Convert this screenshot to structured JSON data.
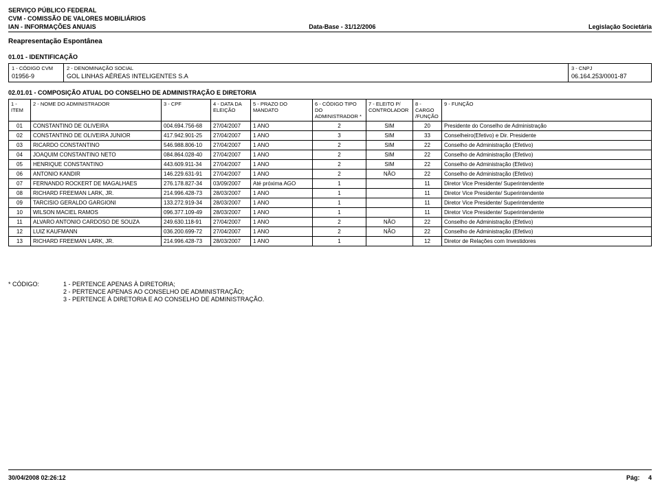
{
  "header": {
    "line1": "SERVIÇO PÚBLICO FEDERAL",
    "line2": "CVM - COMISSÃO DE VALORES MOBILIÁRIOS",
    "left3": "IAN - INFORMAÇÕES ANUAIS",
    "center3": "Data-Base - 31/12/2006",
    "right3": "Legislação Societária",
    "reap": "Reapresentação Espontânea"
  },
  "section1": {
    "title": "01.01 - IDENTIFICAÇÃO",
    "codigo_lbl": "1 - CÓDIGO CVM",
    "codigo_val": "01956-9",
    "denom_lbl": "2 - DENOMINAÇÃO SOCIAL",
    "denom_val": "GOL LINHAS AÉREAS INTELIGENTES S.A",
    "cnpj_lbl": "3 - CNPJ",
    "cnpj_val": "06.164.253/0001-87"
  },
  "section2": {
    "title": "02.01.01 - COMPOSIÇÃO ATUAL DO CONSELHO DE ADMINISTRAÇÃO E DIRETORIA",
    "headers": {
      "item": "1 - ITEM",
      "nome": "2 - NOME DO ADMINISTRADOR",
      "cpf": "3 - CPF",
      "data": "4 - DATA DA ELEIÇÃO",
      "prazo": "5 - PRAZO DO MANDATO",
      "tipo": "6 - CÓDIGO TIPO DO ADMINISTRADOR *",
      "eleito": "7 - ELEITO P/ CONTROLADOR",
      "cargo": "8 - CARGO /FUNÇÃO",
      "func": "9 - FUNÇÃO"
    },
    "rows": [
      {
        "item": "01",
        "nome": "CONSTANTINO DE OLIVEIRA",
        "cpf": "004.694.756-68",
        "data": "27/04/2007",
        "prazo": "1 ANO",
        "tipo": "2",
        "eleito": "SIM",
        "cargo": "20",
        "func": "Presidente do Conselho de Administração"
      },
      {
        "item": "02",
        "nome": "CONSTANTINO DE OLIVEIRA JUNIOR",
        "cpf": "417.942.901-25",
        "data": "27/04/2007",
        "prazo": "1 ANO",
        "tipo": "3",
        "eleito": "SIM",
        "cargo": "33",
        "func": "Conselheiro(Efetivo) e Dir. Presidente"
      },
      {
        "item": "03",
        "nome": "RICARDO CONSTANTINO",
        "cpf": "546.988.806-10",
        "data": "27/04/2007",
        "prazo": "1 ANO",
        "tipo": "2",
        "eleito": "SIM",
        "cargo": "22",
        "func": "Conselho de Administração (Efetivo)"
      },
      {
        "item": "04",
        "nome": "JOAQUIM CONSTANTINO NETO",
        "cpf": "084.864.028-40",
        "data": "27/04/2007",
        "prazo": "1 ANO",
        "tipo": "2",
        "eleito": "SIM",
        "cargo": "22",
        "func": "Conselho de Administração (Efetivo)"
      },
      {
        "item": "05",
        "nome": "HENRIQUE CONSTANTINO",
        "cpf": "443.609.911-34",
        "data": "27/04/2007",
        "prazo": "1 ANO",
        "tipo": "2",
        "eleito": "SIM",
        "cargo": "22",
        "func": "Conselho de Administração (Efetivo)"
      },
      {
        "item": "06",
        "nome": "ANTONIO KANDIR",
        "cpf": "146.229.631-91",
        "data": "27/04/2007",
        "prazo": "1 ANO",
        "tipo": "2",
        "eleito": "NÃO",
        "cargo": "22",
        "func": "Conselho de Administração (Efetivo)"
      },
      {
        "item": "07",
        "nome": "FERNANDO ROCKERT DE MAGALHAES",
        "cpf": "276.178.827-34",
        "data": "03/09/2007",
        "prazo": "Até próxima AGO",
        "tipo": "1",
        "eleito": "",
        "cargo": "11",
        "func": "Diretor Vice Presidente/ Superintendente"
      },
      {
        "item": "08",
        "nome": "RICHARD FREEMAN LARK, JR.",
        "cpf": "214.996.428-73",
        "data": "28/03/2007",
        "prazo": "1 ANO",
        "tipo": "1",
        "eleito": "",
        "cargo": "11",
        "func": "Diretor Vice Presidente/ Superintendente"
      },
      {
        "item": "09",
        "nome": "TARCISIO GERALDO GARGIONI",
        "cpf": "133.272.919-34",
        "data": "28/03/2007",
        "prazo": "1 ANO",
        "tipo": "1",
        "eleito": "",
        "cargo": "11",
        "func": "Diretor Vice Presidente/ Superintendente"
      },
      {
        "item": "10",
        "nome": "WILSON MACIEL RAMOS",
        "cpf": "096.377.109-49",
        "data": "28/03/2007",
        "prazo": "1 ANO",
        "tipo": "1",
        "eleito": "",
        "cargo": "11",
        "func": "Diretor Vice Presidente/ Superintendente"
      },
      {
        "item": "11",
        "nome": "ALVARO ANTONIO CARDOSO DE SOUZA",
        "cpf": "249.630.118-91",
        "data": "27/04/2007",
        "prazo": "1 ANO",
        "tipo": "2",
        "eleito": "NÃO",
        "cargo": "22",
        "func": "Conselho de Administração (Efetivo)"
      },
      {
        "item": "12",
        "nome": "LUIZ KAUFMANN",
        "cpf": "036.200.699-72",
        "data": "27/04/2007",
        "prazo": "1 ANO",
        "tipo": "2",
        "eleito": "NÃO",
        "cargo": "22",
        "func": "Conselho de Administração (Efetivo)"
      },
      {
        "item": "13",
        "nome": "RICHARD FREEMAN LARK, JR.",
        "cpf": "214.996.428-73",
        "data": "28/03/2007",
        "prazo": "1 ANO",
        "tipo": "1",
        "eleito": "",
        "cargo": "12",
        "func": "Diretor de Relações com Investidores"
      }
    ]
  },
  "codigo_note": {
    "label": "* CÓDIGO:",
    "l1": "1 - PERTENCE APENAS À DIRETORIA;",
    "l2": "2 - PERTENCE APENAS AO CONSELHO DE ADMINISTRAÇÃO;",
    "l3": "3 - PERTENCE À DIRETORIA E AO CONSELHO DE ADMINISTRAÇÃO."
  },
  "footer": {
    "left": "30/04/2008 02:26:12",
    "right_lbl": "Pág:",
    "right_val": "4"
  }
}
